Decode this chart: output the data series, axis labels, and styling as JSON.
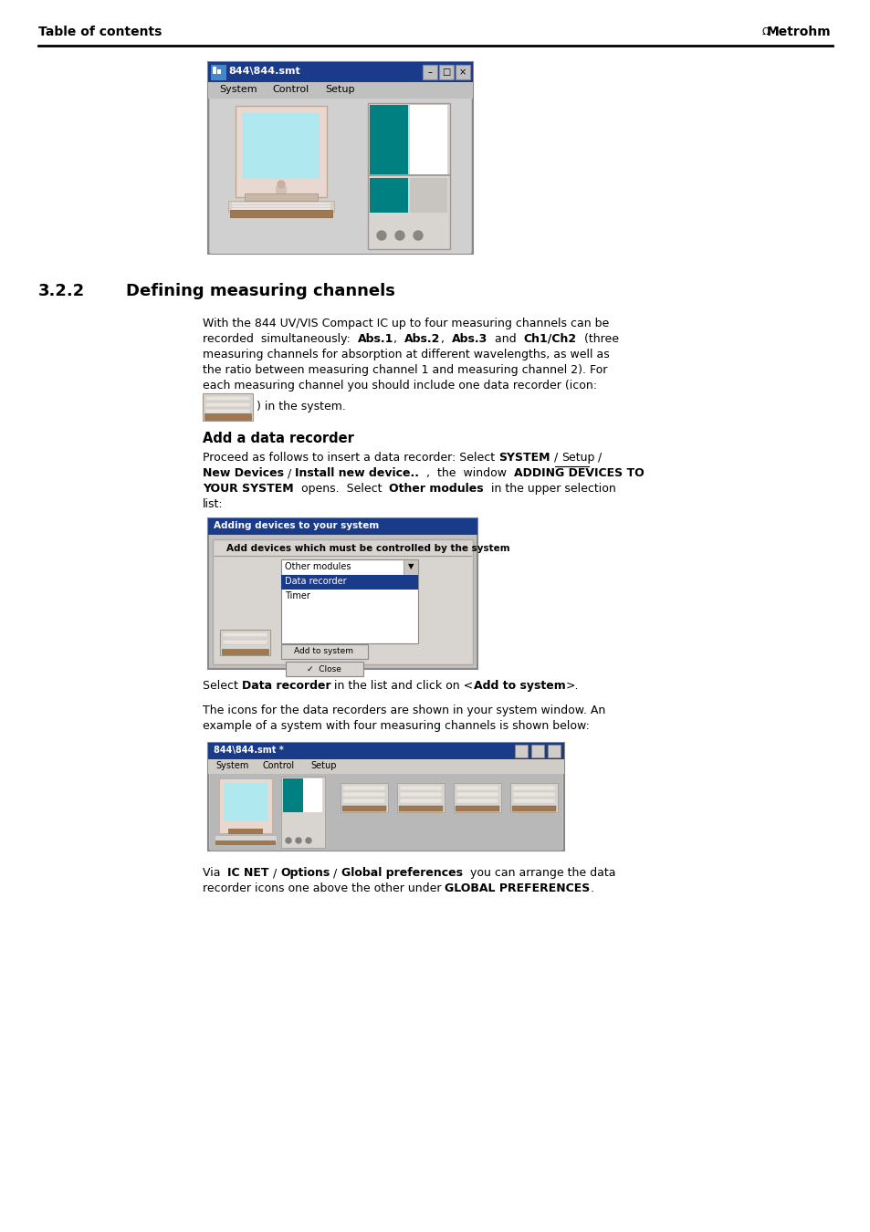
{
  "background_color": "#ffffff",
  "header_text_left": "Table of contents",
  "header_text_right": "Metrohm",
  "section_number": "3.2.2",
  "section_title": "Defining measuring channels",
  "subsection_title": "Add a data recorder",
  "body_fs": 9.0,
  "header_fs": 10.0,
  "section_fs": 13.0,
  "sub_fs": 10.5,
  "win_title_color": "#1a3a8a",
  "win_bg_color": "#c0c0c0",
  "win_inner_color": "#b8b8b8",
  "dlg_inner_color": "#c8c8c8",
  "teal_color": "#008080",
  "monitor_bezel": "#d4d0c8",
  "screen_color": "#aaddee",
  "screen_pink": "#f5c8c8",
  "brown_color": "#a07850",
  "kbd_color": "#d4d0c8",
  "sel_blue": "#1a3a8a"
}
